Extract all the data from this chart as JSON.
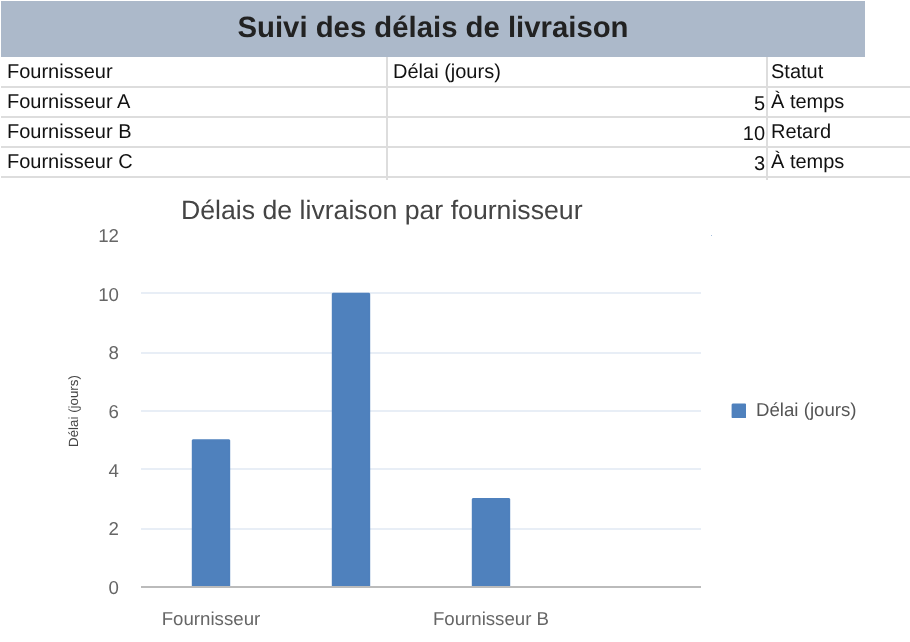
{
  "chart_data": {
    "type": "bar",
    "title": "Suivi des délais de livraison",
    "subtitle": "Délais de livraison par fournisseur",
    "ylabel": "Délai (jours)",
    "annotations": [
      "Fournisseur",
      "Délai (jours)",
      "Statut",
      "Fournisseur A",
      "5",
      "À temps",
      "Fournisseur B",
      "10",
      "Retard",
      "Fournisseur C",
      "3",
      "À temps"
    ],
    "categories": [
      "Fournisseur",
      null,
      "Fournisseur B",
      null
    ],
    "series": [
      {
        "name": "Délai (jours)",
        "color": "#4f81bd",
        "values": [
          5,
          10,
          3,
          null
        ]
      }
    ],
    "ylim": [
      0,
      12
    ],
    "yticks": [
      0,
      2,
      4,
      6,
      8,
      10,
      12
    ],
    "grid": "y",
    "legend": "right"
  }
}
